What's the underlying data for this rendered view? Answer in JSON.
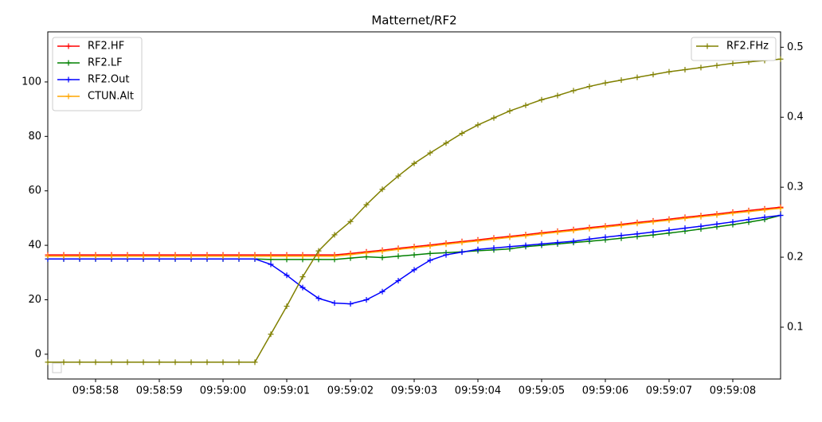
{
  "chart_data": {
    "type": "line",
    "title": "Matternet/RF2",
    "x": [
      35937.25,
      35937.5,
      35937.75,
      35938,
      35938.25,
      35938.5,
      35938.75,
      35939,
      35939.25,
      35939.5,
      35939.75,
      35940,
      35940.25,
      35940.5,
      35940.75,
      35941,
      35941.25,
      35941.5,
      35941.75,
      35942,
      35942.25,
      35942.5,
      35942.75,
      35943,
      35943.25,
      35943.5,
      35943.75,
      35944,
      35944.25,
      35944.5,
      35944.75,
      35945,
      35945.25,
      35945.5,
      35945.75,
      35946,
      35946.25,
      35946.5,
      35946.75,
      35947,
      35947.25,
      35947.5,
      35947.75,
      35948,
      35948.25,
      35948.5,
      35948.75
    ],
    "series": [
      {
        "name": "RF2.HF",
        "color": "#ff0000",
        "values": [
          36.5,
          36.5,
          36.5,
          36.5,
          36.5,
          36.5,
          36.5,
          36.5,
          36.5,
          36.5,
          36.5,
          36.5,
          36.5,
          36.5,
          36.5,
          36.5,
          36.5,
          36.5,
          36.5,
          37.0,
          37.6,
          38.2,
          38.9,
          39.5,
          40.1,
          40.8,
          41.4,
          42.0,
          42.7,
          43.3,
          43.9,
          44.6,
          45.2,
          45.8,
          46.5,
          47.1,
          47.7,
          48.4,
          49.0,
          49.6,
          50.3,
          50.9,
          51.5,
          52.2,
          52.8,
          53.4,
          54.0
        ]
      },
      {
        "name": "RF2.LF",
        "color": "#008000",
        "values": [
          35,
          35,
          35,
          35,
          35,
          35,
          35,
          35,
          35,
          35,
          35,
          35,
          35,
          35,
          34.8,
          34.8,
          34.8,
          34.8,
          34.8,
          35.3,
          35.8,
          35.5,
          36,
          36.5,
          37,
          37.3,
          37.6,
          38,
          38.3,
          38.7,
          39.5,
          40,
          40.5,
          41,
          41.5,
          42,
          42.6,
          43.2,
          43.8,
          44.5,
          45.2,
          46,
          46.8,
          47.6,
          48.5,
          49.5,
          51
        ]
      },
      {
        "name": "RF2.Out",
        "color": "#0000ff",
        "values": [
          35,
          35,
          35,
          35,
          35,
          35,
          35,
          35,
          35,
          35,
          35,
          35,
          35,
          35,
          33,
          29,
          24.5,
          20.5,
          18.8,
          18.5,
          20,
          23,
          27,
          31,
          34.5,
          36.5,
          37.5,
          38.5,
          39,
          39.5,
          40,
          40.5,
          41,
          41.5,
          42.3,
          43,
          43.6,
          44.2,
          44.9,
          45.6,
          46.3,
          47,
          47.8,
          48.6,
          49.5,
          50.3,
          51
        ]
      },
      {
        "name": "CTUN.Alt",
        "color": "#ffa500",
        "values": [
          36,
          36,
          36,
          36,
          36,
          36,
          36,
          36,
          36,
          36,
          36,
          36,
          36,
          36,
          36,
          36,
          36,
          36,
          36,
          36.6,
          37.2,
          37.8,
          38.5,
          39.1,
          39.7,
          40.4,
          41.0,
          41.6,
          42.3,
          42.9,
          43.5,
          44.2,
          44.8,
          45.4,
          46.1,
          46.7,
          47.3,
          48.0,
          48.6,
          49.2,
          49.9,
          50.5,
          51.1,
          51.8,
          52.4,
          53.0,
          53.6
        ]
      },
      {
        "name": "RF2.FHz",
        "color": "#808000",
        "axis": "y2",
        "values": [
          0.05,
          0.05,
          0.05,
          0.05,
          0.05,
          0.05,
          0.05,
          0.05,
          0.05,
          0.05,
          0.05,
          0.05,
          0.05,
          0.05,
          0.09,
          0.13,
          0.172,
          0.209,
          0.232,
          0.251,
          0.275,
          0.297,
          0.316,
          0.334,
          0.349,
          0.363,
          0.377,
          0.389,
          0.399,
          0.409,
          0.417,
          0.425,
          0.431,
          0.438,
          0.444,
          0.449,
          0.453,
          0.457,
          0.461,
          0.465,
          0.468,
          0.471,
          0.474,
          0.477,
          0.479,
          0.481,
          0.483
        ]
      }
    ],
    "xlim": [
      35937.25,
      35948.75
    ],
    "xticks": [
      {
        "value": 35938,
        "label": "09:58:58"
      },
      {
        "value": 35939,
        "label": "09:58:59"
      },
      {
        "value": 35940,
        "label": "09:59:00"
      },
      {
        "value": 35941,
        "label": "09:59:01"
      },
      {
        "value": 35942,
        "label": "09:59:02"
      },
      {
        "value": 35943,
        "label": "09:59:03"
      },
      {
        "value": 35944,
        "label": "09:59:04"
      },
      {
        "value": 35945,
        "label": "09:59:05"
      },
      {
        "value": 35946,
        "label": "09:59:06"
      },
      {
        "value": 35947,
        "label": "09:59:07"
      },
      {
        "value": 35948,
        "label": "09:59:08"
      }
    ],
    "ylim": [
      -9.1,
      118.4
    ],
    "yticks": [
      0,
      20,
      40,
      60,
      80,
      100
    ],
    "y2lim": [
      0.026,
      0.522
    ],
    "y2ticks": [
      0.1,
      0.2,
      0.3,
      0.4,
      0.5
    ]
  }
}
